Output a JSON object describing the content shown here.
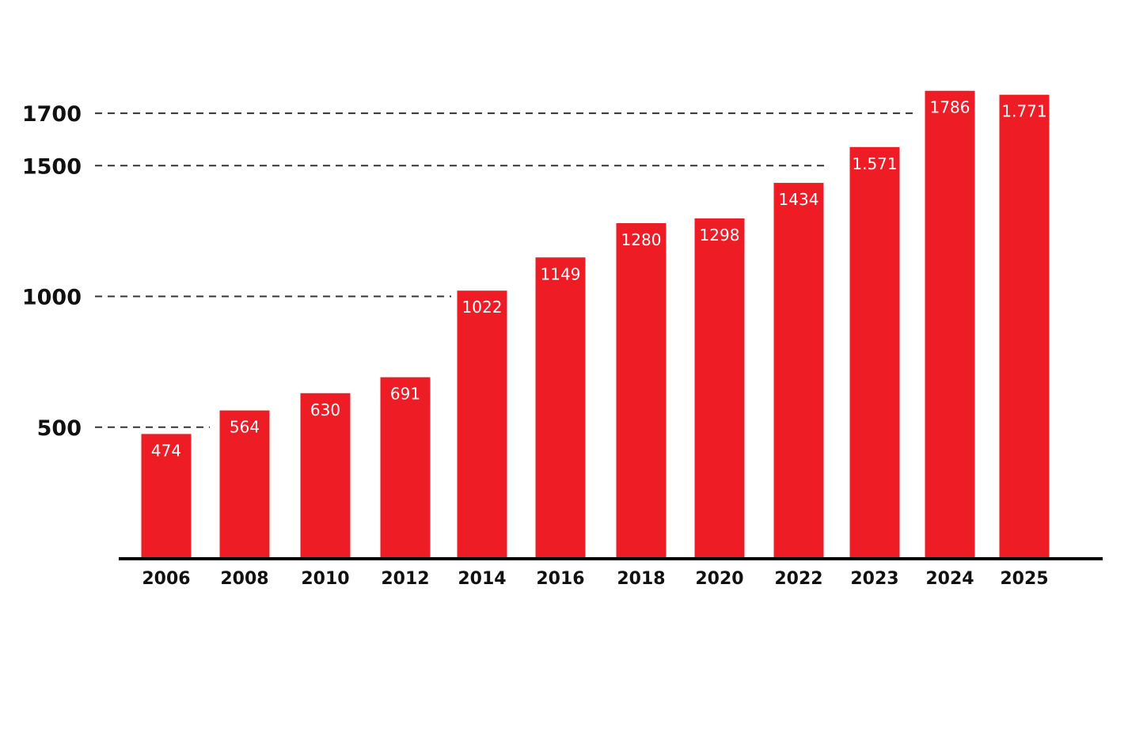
{
  "chart_data": {
    "type": "bar",
    "categories": [
      "2006",
      "2008",
      "2010",
      "2012",
      "2014",
      "2016",
      "2018",
      "2020",
      "2022",
      "2023",
      "2024",
      "2025"
    ],
    "values": [
      474,
      564,
      630,
      691,
      1022,
      1149,
      1280,
      1298,
      1434,
      1571,
      1786,
      1771
    ],
    "data_labels": [
      "474",
      "564",
      "630",
      "691",
      "1022",
      "1149",
      "1280",
      "1298",
      "1434",
      "1.571",
      "1786",
      "1.771"
    ],
    "y_ticks": [
      {
        "value": 500,
        "label": "500"
      },
      {
        "value": 1000,
        "label": "1000"
      },
      {
        "value": 1500,
        "label": "1500"
      },
      {
        "value": 1700,
        "label": "1700"
      }
    ],
    "ylim": [
      0,
      1800
    ],
    "grid": "dashed reference lines at tick values",
    "legend": "none",
    "colors": {
      "bar": "#ee1c25",
      "axis": "#000000",
      "text": "#111111",
      "label": "#ffffff"
    }
  }
}
